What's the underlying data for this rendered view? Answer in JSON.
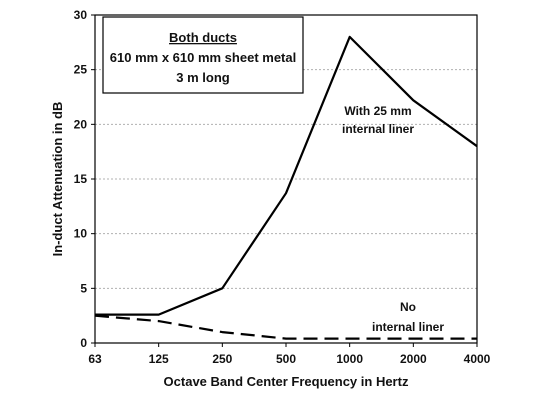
{
  "chart_data": {
    "type": "line",
    "xlabel": "Octave Band Center Frequency in Hertz",
    "ylabel": "In-duct Attenuation in dB",
    "categories": [
      "63",
      "125",
      "250",
      "500",
      "1000",
      "2000",
      "4000"
    ],
    "ylim": [
      0,
      30
    ],
    "yticks": [
      "0",
      "5",
      "10",
      "15",
      "20",
      "25",
      "30"
    ],
    "grid": "horizontal dotted",
    "legend": "none",
    "series": [
      {
        "name": "With 25 mm internal liner",
        "line_style": "solid",
        "values": [
          2.6,
          2.6,
          5.0,
          13.7,
          28.0,
          22.2,
          18.0
        ]
      },
      {
        "name": "No internal liner",
        "line_style": "dashed",
        "values": [
          2.5,
          2.0,
          1.0,
          0.4,
          0.4,
          0.4,
          0.4
        ]
      }
    ],
    "annotations": [
      {
        "line1": "With 25 mm",
        "line2": "internal liner"
      },
      {
        "line1": "No",
        "line2": "internal liner"
      }
    ],
    "info_box": {
      "title": "Both ducts",
      "line1": "610 mm x 610 mm sheet metal",
      "line2": "3 m long"
    }
  },
  "colors": {
    "line": "#000000",
    "grid": "#b0b0b0",
    "background": "#ffffff"
  }
}
